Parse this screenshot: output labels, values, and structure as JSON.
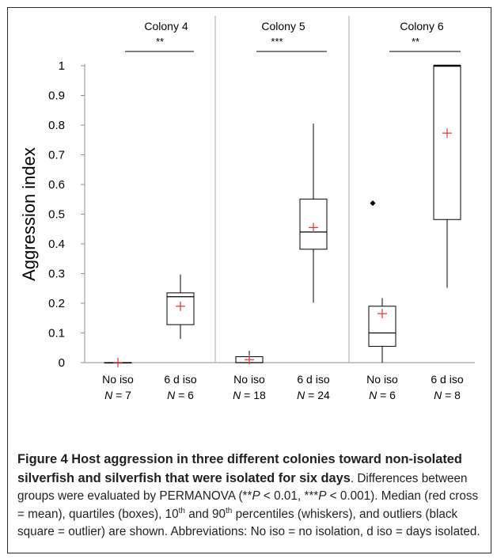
{
  "chart_data": {
    "type": "box",
    "ylabel": "Aggression index",
    "ylim": [
      0,
      1
    ],
    "yticks": [
      "0",
      "0.1",
      "0.2",
      "0.3",
      "0.4",
      "0.5",
      "0.6",
      "0.7",
      "0.8",
      "0.9",
      "1"
    ],
    "colonies": [
      {
        "name": "Colony 4",
        "significance": "**",
        "groups": [
          {
            "label": "No iso",
            "n_prefix": "N",
            "n_text": " = 7",
            "p10": 0,
            "q1": 0,
            "median": 0,
            "q3": 0,
            "p90": 0,
            "mean": 0,
            "outliers": []
          },
          {
            "label": "6 d iso",
            "n_prefix": "N",
            "n_text": " = 6",
            "p10": 0.08,
            "q1": 0.128,
            "median": 0.222,
            "q3": 0.235,
            "p90": 0.297,
            "mean": 0.19,
            "outliers": []
          }
        ]
      },
      {
        "name": "Colony 5",
        "significance": "***",
        "groups": [
          {
            "label": "No iso",
            "n_prefix": "N",
            "n_text": " = 18",
            "p10": 0,
            "q1": 0,
            "median": 0,
            "q3": 0.02,
            "p90": 0.04,
            "mean": 0.01,
            "outliers": []
          },
          {
            "label": "6 d iso",
            "n_prefix": "N",
            "n_text": " = 24",
            "p10": 0.202,
            "q1": 0.382,
            "median": 0.44,
            "q3": 0.551,
            "p90": 0.805,
            "mean": 0.455,
            "outliers": []
          }
        ]
      },
      {
        "name": "Colony 6",
        "significance": "**",
        "groups": [
          {
            "label": "No iso",
            "n_prefix": "N",
            "n_text": " = 6",
            "p10": 0,
            "q1": 0.055,
            "median": 0.1,
            "q3": 0.19,
            "p90": 0.217,
            "mean": 0.165,
            "outliers": [
              0.537
            ]
          },
          {
            "label": "6 d iso",
            "n_prefix": "N",
            "n_text": " = 8",
            "p10": 0.252,
            "q1": 0.482,
            "median": 1.0,
            "q3": 1.0,
            "p90": 1.0,
            "mean": 0.773,
            "outliers": []
          }
        ]
      }
    ],
    "colors": {
      "box": "#000000",
      "mean_marker": "#e8302e",
      "outlier": "#000000",
      "separator": "#a6a6a6"
    }
  },
  "caption": {
    "title": "Figure 4 Host aggression in three different colonies toward non-isolated silverfish and silverfish that were isolated for six days",
    "p1": ". Differences between groups were evaluated by PERMANOVA (",
    "sig2": "**",
    "p_italic": "P",
    "p2": " < 0.01, ",
    "sig3": "***",
    "p3": " < 0.001). Median (red cross = mean), quartiles (boxes), 10",
    "th1": "th",
    "p4": " and 90",
    "th2": "th",
    "p5": " percentiles (whiskers), and outliers (black square = outlier) are shown. Abbreviations: No iso = no isolation, d iso = days isolated."
  }
}
